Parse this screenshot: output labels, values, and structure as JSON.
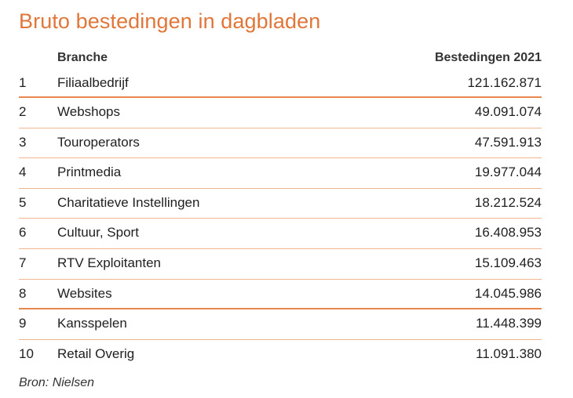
{
  "title": "Bruto bestedingen in dagbladen",
  "source": "Bron: Nielsen",
  "chart_data": {
    "type": "table",
    "title": "Bruto bestedingen in dagbladen",
    "columns": [
      "",
      "Branche",
      "Bestedingen 2021"
    ],
    "rows": [
      {
        "rank": "1",
        "branche": "Filiaalbedrijf",
        "value": "121.162.871"
      },
      {
        "rank": "2",
        "branche": "Webshops",
        "value": "49.091.074"
      },
      {
        "rank": "3",
        "branche": "Touroperators",
        "value": "47.591.913"
      },
      {
        "rank": "4",
        "branche": "Printmedia",
        "value": "19.977.044"
      },
      {
        "rank": "5",
        "branche": "Charitatieve Instellingen",
        "value": "18.212.524"
      },
      {
        "rank": "6",
        "branche": "Cultuur, Sport",
        "value": "16.408.953"
      },
      {
        "rank": "7",
        "branche": "RTV Exploitanten",
        "value": "15.109.463"
      },
      {
        "rank": "8",
        "branche": "Websites",
        "value": "14.045.986"
      },
      {
        "rank": "9",
        "branche": "Kansspelen",
        "value": "11.448.399"
      },
      {
        "rank": "10",
        "branche": "Retail Overig",
        "value": "11.091.380"
      }
    ]
  },
  "colors": {
    "accent": "#e0763a",
    "rule_strong": "#e8874e",
    "rule_light": "#f0b48e"
  }
}
